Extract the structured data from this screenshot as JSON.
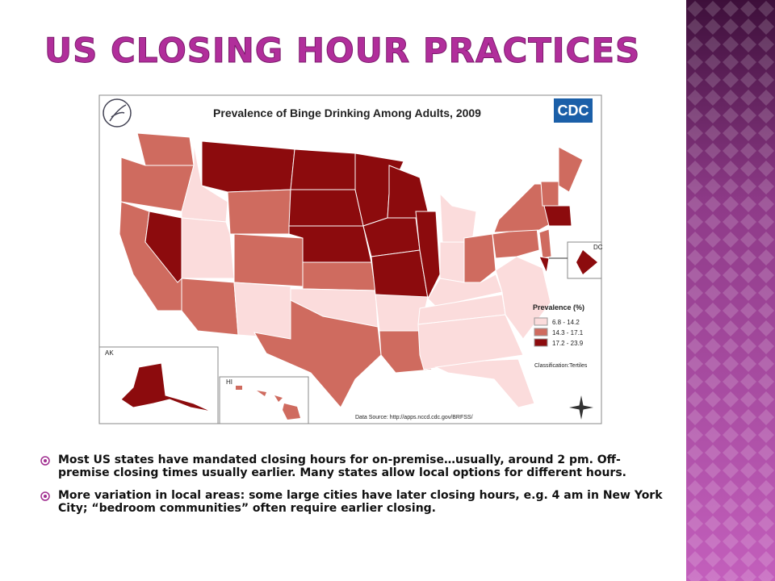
{
  "header": {
    "title": "US CLOSING HOUR PRACTICES"
  },
  "map": {
    "title": "Prevalence of Binge Drinking Among Adults, 2009",
    "logo": "CDC",
    "legend": {
      "title": "Prevalence (%)",
      "items": [
        {
          "label": "6.8 - 14.2",
          "color": "#fbdcdc"
        },
        {
          "label": "14.3 - 17.1",
          "color": "#cf6b5f"
        },
        {
          "label": "17.2 - 23.9",
          "color": "#8c0b0d"
        }
      ]
    },
    "classification": "Classification:Tertiles",
    "source": "Data Source: http://apps.nccd.cdc.gov/BRFSS/",
    "insets": [
      "AK",
      "HI",
      "DC"
    ]
  },
  "bullets": [
    "Most US states have mandated closing hours for on-premise…usually, around 2 pm. Off-premise closing times usually earlier.  Many states allow local options for different hours.",
    "More variation in local areas:  some large cities have later closing hours, e.g. 4 am in New York City; “bedroom communities” often require earlier closing."
  ]
}
